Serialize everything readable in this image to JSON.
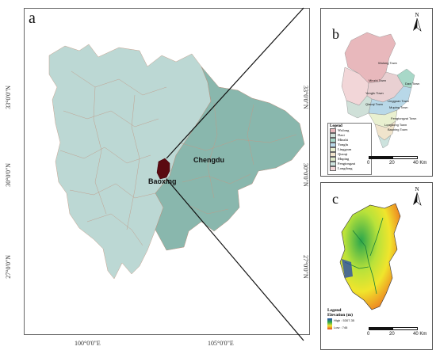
{
  "panels": {
    "a": {
      "label": "a"
    },
    "b": {
      "label": "b"
    },
    "c": {
      "label": "c"
    }
  },
  "map_a": {
    "cities": [
      "Chengdu",
      "Baoxing"
    ],
    "lat_ticks_left": [
      "33°0'0\"N",
      "30°0'0\"N",
      "27°0'0\"N"
    ],
    "lat_ticks_right": [
      "33°0'0\"N",
      "30°0'0\"N",
      "27°0'0\"N"
    ],
    "lon_ticks": [
      "100°0'0\"E",
      "105°0'0\"E"
    ]
  },
  "map_b": {
    "north": "N",
    "towns": [
      "Wulong Town",
      "Daxi Town",
      "Minzhi Town",
      "Yongfu Town",
      "Linggoan Town",
      "Qiaoqi Town",
      "Muping Town",
      "Fengtongzai Town",
      "Longdong Town",
      "Baoxing Town"
    ],
    "legend_title": "Legend",
    "legend_items": [
      "Wulong",
      "Daxi",
      "Minzhi",
      "Yongfu",
      "Linggoan",
      "Qiaoqi",
      "Muping",
      "Fengtongzai",
      "Longdong"
    ],
    "legend_colors": [
      "#e8b8bc",
      "#cfe0d8",
      "#a8d8c8",
      "#b8d8e8",
      "#e9f0d0",
      "#f0e4cc",
      "#dde8c8",
      "#cde3de",
      "#f2d6d8"
    ],
    "scale": [
      "0",
      "20",
      "40 Km"
    ]
  },
  "map_c": {
    "north": "N",
    "legend_title": "Legend",
    "legend_subtitle": "Elevation (m)",
    "legend_high": "High : 5307.35",
    "legend_low": "Low : 746",
    "scale": [
      "0",
      "20",
      "40 Km"
    ]
  }
}
